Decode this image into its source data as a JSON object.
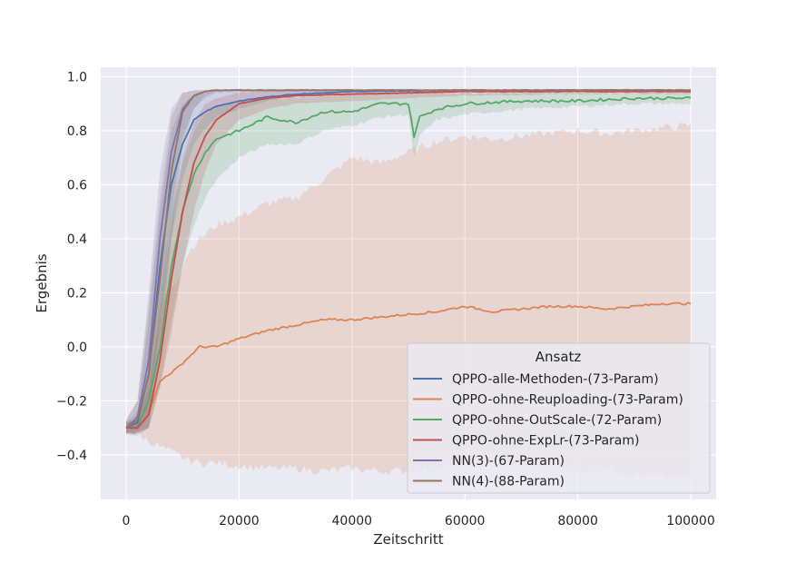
{
  "chart_data": {
    "type": "line",
    "title": "",
    "xlabel": "Zeitschritt",
    "ylabel": "Ergebnis",
    "xlim": [
      -4500,
      104500
    ],
    "ylim": [
      -0.565,
      1.035
    ],
    "xticks": [
      0,
      20000,
      40000,
      60000,
      80000,
      100000
    ],
    "xtick_labels": [
      "0",
      "20000",
      "40000",
      "60000",
      "80000",
      "100000"
    ],
    "yticks": [
      -0.4,
      -0.2,
      0.0,
      0.2,
      0.4,
      0.6,
      0.8,
      1.0
    ],
    "ytick_labels": [
      "−0.4",
      "−0.2",
      "0.0",
      "0.2",
      "0.4",
      "0.6",
      "0.8",
      "1.0"
    ],
    "grid": true,
    "legend": {
      "title": "Ansatz",
      "placement": "lower-right"
    },
    "series": [
      {
        "name": "QPPO-alle-Methoden-(73-Param)",
        "color": "#4c72b0",
        "x": [
          0,
          2000,
          4000,
          6000,
          8000,
          10000,
          12000,
          14000,
          16000,
          20000,
          25000,
          30000,
          40000,
          50000,
          60000,
          80000,
          100000
        ],
        "y": [
          -0.3,
          -0.28,
          -0.1,
          0.3,
          0.6,
          0.75,
          0.84,
          0.87,
          0.89,
          0.91,
          0.925,
          0.935,
          0.945,
          0.948,
          0.95,
          0.95,
          0.95
        ],
        "lower": [
          -0.32,
          -0.31,
          -0.25,
          0.05,
          0.4,
          0.62,
          0.75,
          0.81,
          0.85,
          0.88,
          0.91,
          0.925,
          0.935,
          0.94,
          0.945,
          0.945,
          0.945
        ],
        "upper": [
          -0.28,
          -0.24,
          0.1,
          0.5,
          0.8,
          0.9,
          0.93,
          0.94,
          0.945,
          0.948,
          0.95,
          0.95,
          0.95,
          0.95,
          0.95,
          0.95,
          0.95
        ]
      },
      {
        "name": "QPPO-ohne-Reuploading-(73-Param)",
        "color": "#dd8452",
        "x": [
          0,
          2000,
          4000,
          6000,
          7000,
          9000,
          11000,
          13000,
          16000,
          20000,
          25000,
          30000,
          35000,
          40000,
          45000,
          50000,
          55000,
          60000,
          65000,
          70000,
          75000,
          80000,
          85000,
          90000,
          95000,
          100000
        ],
        "y": [
          -0.3,
          -0.3,
          -0.24,
          -0.13,
          -0.11,
          -0.08,
          -0.04,
          0.0,
          0.0,
          0.03,
          0.06,
          0.08,
          0.1,
          0.1,
          0.11,
          0.12,
          0.13,
          0.15,
          0.13,
          0.14,
          0.15,
          0.15,
          0.14,
          0.15,
          0.16,
          0.16
        ],
        "lower": [
          -0.32,
          -0.32,
          -0.35,
          -0.37,
          -0.38,
          -0.4,
          -0.42,
          -0.43,
          -0.43,
          -0.44,
          -0.45,
          -0.45,
          -0.46,
          -0.45,
          -0.46,
          -0.46,
          -0.45,
          -0.43,
          -0.42,
          -0.44,
          -0.43,
          -0.47,
          -0.45,
          -0.47,
          -0.48,
          -0.48
        ],
        "upper": [
          -0.28,
          -0.26,
          -0.1,
          0.1,
          0.2,
          0.25,
          0.35,
          0.4,
          0.45,
          0.48,
          0.53,
          0.55,
          0.62,
          0.7,
          0.68,
          0.72,
          0.76,
          0.78,
          0.77,
          0.78,
          0.79,
          0.8,
          0.79,
          0.8,
          0.81,
          0.82
        ]
      },
      {
        "name": "QPPO-ohne-OutScale-(72-Param)",
        "color": "#55a868",
        "x": [
          0,
          2000,
          4000,
          6000,
          8000,
          10000,
          12000,
          14000,
          16000,
          20000,
          25000,
          30000,
          35000,
          40000,
          45000,
          50000,
          51000,
          52000,
          55000,
          60000,
          70000,
          80000,
          90000,
          100000
        ],
        "y": [
          -0.3,
          -0.3,
          -0.2,
          0.0,
          0.3,
          0.5,
          0.64,
          0.72,
          0.77,
          0.8,
          0.85,
          0.83,
          0.87,
          0.87,
          0.9,
          0.9,
          0.78,
          0.85,
          0.88,
          0.9,
          0.91,
          0.91,
          0.92,
          0.92
        ],
        "lower": [
          -0.32,
          -0.32,
          -0.3,
          -0.15,
          0.1,
          0.3,
          0.45,
          0.55,
          0.62,
          0.7,
          0.75,
          0.75,
          0.8,
          0.82,
          0.85,
          0.86,
          0.7,
          0.78,
          0.84,
          0.86,
          0.88,
          0.89,
          0.9,
          0.9
        ],
        "upper": [
          -0.28,
          -0.27,
          -0.1,
          0.2,
          0.5,
          0.68,
          0.8,
          0.86,
          0.89,
          0.9,
          0.92,
          0.92,
          0.93,
          0.93,
          0.94,
          0.94,
          0.95,
          0.94,
          0.94,
          0.94,
          0.94,
          0.94,
          0.94,
          0.94
        ]
      },
      {
        "name": "QPPO-ohne-ExpLr-(73-Param)",
        "color": "#c44e52",
        "x": [
          0,
          2000,
          4000,
          6000,
          8000,
          10000,
          12000,
          14000,
          16000,
          20000,
          25000,
          30000,
          40000,
          50000,
          60000,
          80000,
          100000
        ],
        "y": [
          -0.3,
          -0.3,
          -0.25,
          -0.05,
          0.25,
          0.5,
          0.68,
          0.78,
          0.84,
          0.9,
          0.92,
          0.93,
          0.935,
          0.94,
          0.945,
          0.945,
          0.945
        ],
        "lower": [
          -0.32,
          -0.32,
          -0.3,
          -0.15,
          0.05,
          0.3,
          0.5,
          0.65,
          0.75,
          0.84,
          0.88,
          0.9,
          0.91,
          0.92,
          0.93,
          0.935,
          0.935
        ],
        "upper": [
          -0.28,
          -0.27,
          -0.15,
          0.15,
          0.45,
          0.7,
          0.83,
          0.9,
          0.92,
          0.94,
          0.95,
          0.95,
          0.95,
          0.95,
          0.95,
          0.95,
          0.95
        ]
      },
      {
        "name": "NN(3)-(67-Param)",
        "color": "#8172b3",
        "x": [
          0,
          2000,
          4000,
          6000,
          8000,
          10000,
          12000,
          14000,
          16000,
          20000,
          30000,
          50000,
          100000
        ],
        "y": [
          -0.3,
          -0.26,
          -0.05,
          0.4,
          0.72,
          0.88,
          0.93,
          0.945,
          0.95,
          0.95,
          0.95,
          0.95,
          0.95
        ],
        "lower": [
          -0.32,
          -0.33,
          -0.3,
          0.1,
          0.5,
          0.78,
          0.88,
          0.92,
          0.94,
          0.945,
          0.945,
          0.945,
          0.945
        ],
        "upper": [
          -0.27,
          -0.2,
          0.2,
          0.65,
          0.88,
          0.94,
          0.95,
          0.95,
          0.95,
          0.95,
          0.95,
          0.95,
          0.95
        ]
      },
      {
        "name": "NN(4)-(88-Param)",
        "color": "#937860",
        "x": [
          0,
          2000,
          4000,
          6000,
          8000,
          10000,
          12000,
          14000,
          16000,
          20000,
          30000,
          50000,
          100000
        ],
        "y": [
          -0.3,
          -0.27,
          -0.1,
          0.25,
          0.65,
          0.87,
          0.93,
          0.945,
          0.95,
          0.95,
          0.95,
          0.95,
          0.95
        ],
        "lower": [
          -0.32,
          -0.32,
          -0.3,
          -0.05,
          0.4,
          0.75,
          0.88,
          0.93,
          0.945,
          0.948,
          0.948,
          0.948,
          0.948
        ],
        "upper": [
          -0.27,
          -0.2,
          0.15,
          0.55,
          0.85,
          0.94,
          0.95,
          0.95,
          0.95,
          0.95,
          0.95,
          0.95,
          0.95
        ]
      }
    ]
  }
}
